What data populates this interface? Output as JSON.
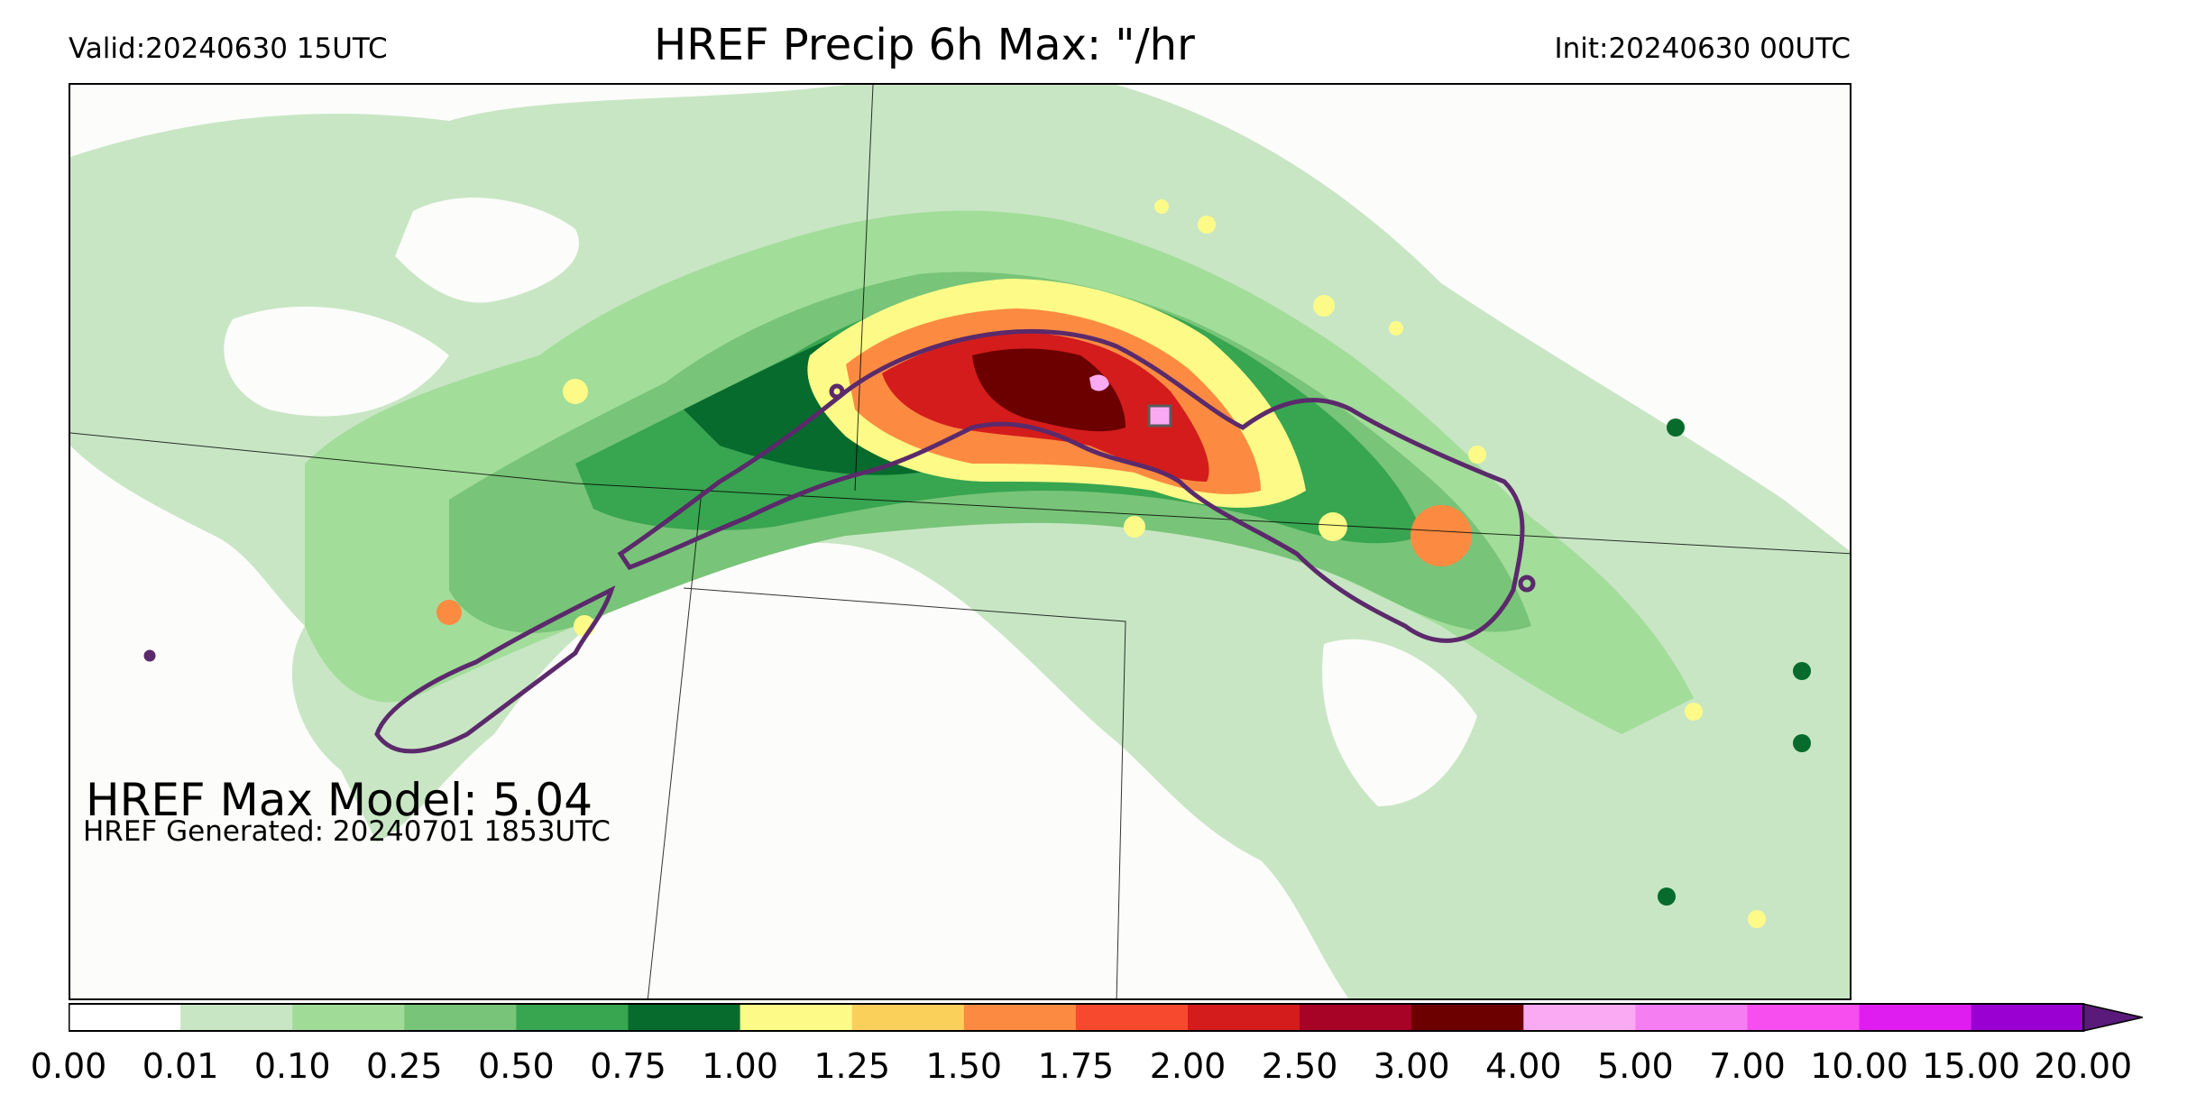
{
  "header": {
    "valid": "Valid:20240630 15UTC",
    "title": "HREF Precip 6h Max: \"/hr",
    "init": "Init:20240630 00UTC"
  },
  "annotations": {
    "max_model": "HREF Max Model: 5.04",
    "generated": "HREF Generated: 20240701 1853UTC"
  },
  "colorbar": {
    "labels": [
      "0.00",
      "0.01",
      "0.10",
      "0.25",
      "0.50",
      "0.75",
      "1.00",
      "1.25",
      "1.50",
      "1.75",
      "2.00",
      "2.50",
      "3.00",
      "4.00",
      "5.00",
      "7.00",
      "10.00",
      "15.00",
      "20.00"
    ],
    "colors": [
      "#ffffff",
      "#c8e6c4",
      "#a0dc98",
      "#78c478",
      "#38a550",
      "#066b2c",
      "#fdfa88",
      "#fbd05a",
      "#fc8b41",
      "#f7492d",
      "#d41c1c",
      "#a70326",
      "#6c0000",
      "#f9aaf3",
      "#f57ff2",
      "#f74ef0",
      "#e01df1",
      "#9b00d2"
    ],
    "extend_color": "#5a1a7a"
  },
  "overlay": {
    "contour_color": "#5b2a6b"
  }
}
